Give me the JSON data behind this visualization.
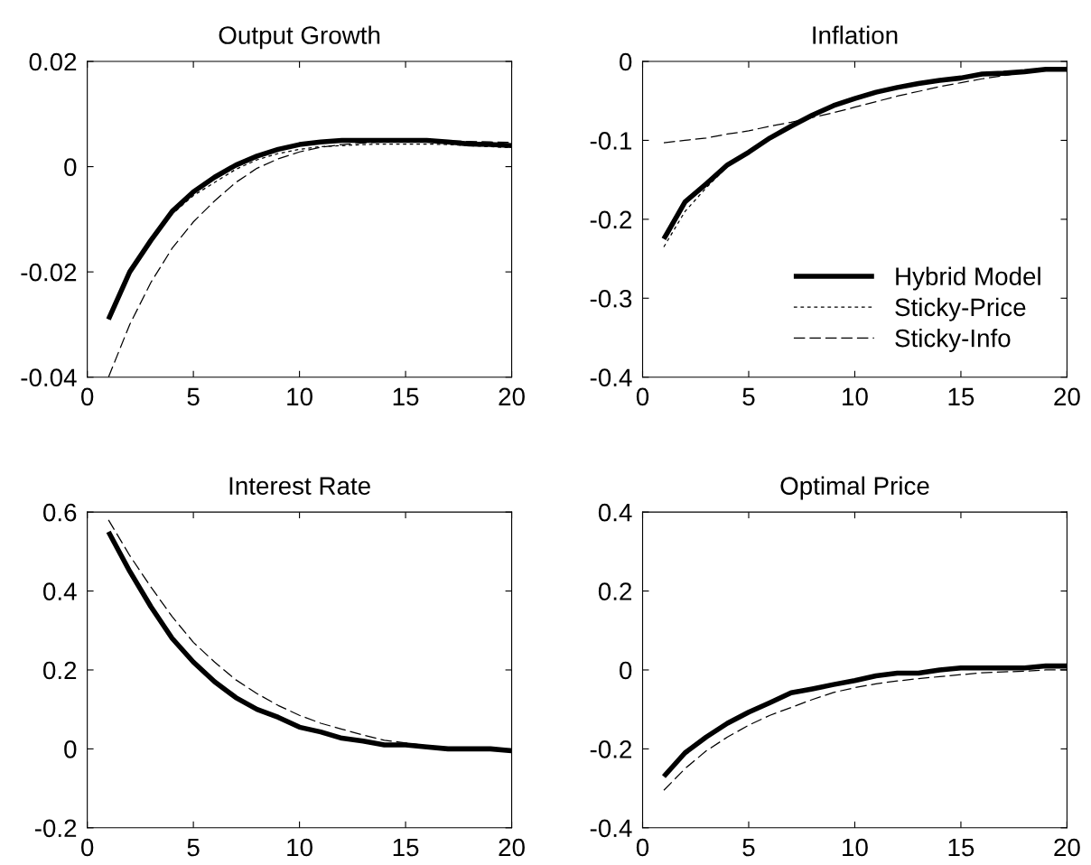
{
  "chart_data": [
    {
      "type": "line",
      "title": "Output Growth",
      "x": [
        1,
        2,
        3,
        4,
        5,
        6,
        7,
        8,
        9,
        10,
        11,
        12,
        13,
        14,
        15,
        16,
        17,
        18,
        19,
        20
      ],
      "xlim": [
        0,
        20
      ],
      "xticks": [
        0,
        5,
        10,
        15,
        20
      ],
      "ylim": [
        -0.04,
        0.02
      ],
      "yticks": [
        -0.04,
        -0.02,
        0,
        0.02
      ],
      "grid": false,
      "legend": false,
      "series": [
        {
          "color": "#000000",
          "line_style": "solid",
          "values": [
            -0.029,
            -0.02,
            -0.014,
            -0.0085,
            -0.0048,
            -0.002,
            0.0003,
            0.002,
            0.0033,
            0.0042,
            0.0047,
            0.005,
            0.005,
            0.005,
            0.005,
            0.005,
            0.0047,
            0.0043,
            0.0042,
            0.004
          ]
        },
        {
          "color": "#000000",
          "line_style": "dotted",
          "values": [
            -0.029,
            -0.02,
            -0.014,
            -0.009,
            -0.0055,
            -0.003,
            -0.0005,
            0.0013,
            0.0025,
            0.0033,
            0.0038,
            0.004,
            0.0042,
            0.0043,
            0.0043,
            0.0043,
            0.0042,
            0.004,
            0.0038,
            0.0036
          ]
        },
        {
          "color": "#000000",
          "line_style": "dashed",
          "values": [
            -0.04,
            -0.03,
            -0.022,
            -0.0155,
            -0.0105,
            -0.0065,
            -0.003,
            -0.0003,
            0.0015,
            0.0028,
            0.0037,
            0.0042,
            0.0045,
            0.0047,
            0.0048,
            0.0049,
            0.0049,
            0.0048,
            0.0047,
            0.0046
          ]
        }
      ]
    },
    {
      "type": "line",
      "title": "Inflation",
      "x": [
        1,
        2,
        3,
        4,
        5,
        6,
        7,
        8,
        9,
        10,
        11,
        12,
        13,
        14,
        15,
        16,
        17,
        18,
        19,
        20
      ],
      "xlim": [
        0,
        20
      ],
      "xticks": [
        0,
        5,
        10,
        15,
        20
      ],
      "ylim": [
        -0.4,
        0
      ],
      "yticks": [
        -0.4,
        -0.3,
        -0.2,
        -0.1,
        0
      ],
      "grid": false,
      "legend": "bottom right",
      "series": [
        {
          "name": "Hybrid Model",
          "color": "#000000",
          "line_style": "solid",
          "values": [
            -0.225,
            -0.178,
            -0.155,
            -0.131,
            -0.115,
            -0.097,
            -0.082,
            -0.068,
            -0.056,
            -0.047,
            -0.039,
            -0.033,
            -0.028,
            -0.024,
            -0.021,
            -0.016,
            -0.015,
            -0.013,
            -0.01,
            -0.01
          ]
        },
        {
          "name": "Sticky-Price",
          "color": "#000000",
          "line_style": "dotted",
          "values": [
            -0.235,
            -0.19,
            -0.16,
            -0.133,
            -0.116,
            -0.098,
            -0.083,
            -0.069,
            -0.057,
            -0.048,
            -0.04,
            -0.034,
            -0.029,
            -0.025,
            -0.021,
            -0.017,
            -0.015,
            -0.013,
            -0.011,
            -0.01
          ]
        },
        {
          "name": "Sticky-Info",
          "color": "#000000",
          "line_style": "dashed",
          "values": [
            -0.103,
            -0.1,
            -0.097,
            -0.092,
            -0.088,
            -0.082,
            -0.077,
            -0.071,
            -0.065,
            -0.058,
            -0.051,
            -0.044,
            -0.038,
            -0.032,
            -0.027,
            -0.022,
            -0.018,
            -0.014,
            -0.011,
            -0.009
          ]
        }
      ]
    },
    {
      "type": "line",
      "title": "Interest Rate",
      "x": [
        1,
        2,
        3,
        4,
        5,
        6,
        7,
        8,
        9,
        10,
        11,
        12,
        13,
        14,
        15,
        16,
        17,
        18,
        19,
        20
      ],
      "xlim": [
        0,
        20
      ],
      "xticks": [
        0,
        5,
        10,
        15,
        20
      ],
      "ylim": [
        -0.2,
        0.6
      ],
      "yticks": [
        -0.2,
        0,
        0.2,
        0.4,
        0.6
      ],
      "grid": false,
      "legend": false,
      "series": [
        {
          "color": "#000000",
          "line_style": "solid",
          "values": [
            0.55,
            0.45,
            0.36,
            0.28,
            0.22,
            0.17,
            0.13,
            0.1,
            0.08,
            0.055,
            0.043,
            0.027,
            0.02,
            0.01,
            0.01,
            0.005,
            0,
            0,
            0,
            -0.005
          ]
        },
        {
          "color": "#000000",
          "line_style": "dashed",
          "values": [
            0.58,
            0.49,
            0.41,
            0.335,
            0.27,
            0.22,
            0.175,
            0.14,
            0.11,
            0.085,
            0.065,
            0.05,
            0.035,
            0.022,
            0.015,
            0.008,
            0.003,
            0,
            -0.002,
            -0.004
          ]
        }
      ]
    },
    {
      "type": "line",
      "title": "Optimal Price",
      "x": [
        1,
        2,
        3,
        4,
        5,
        6,
        7,
        8,
        9,
        10,
        11,
        12,
        13,
        14,
        15,
        16,
        17,
        18,
        19,
        20
      ],
      "xlim": [
        0,
        20
      ],
      "xticks": [
        0,
        5,
        10,
        15,
        20
      ],
      "ylim": [
        -0.4,
        0.4
      ],
      "yticks": [
        -0.4,
        -0.2,
        0,
        0.2,
        0.4
      ],
      "grid": false,
      "legend": false,
      "series": [
        {
          "color": "#000000",
          "line_style": "solid",
          "values": [
            -0.27,
            -0.21,
            -0.17,
            -0.135,
            -0.107,
            -0.083,
            -0.058,
            -0.048,
            -0.037,
            -0.027,
            -0.015,
            -0.008,
            -0.008,
            0,
            0.005,
            0.005,
            0.005,
            0.005,
            0.01,
            0.01
          ]
        },
        {
          "color": "#000000",
          "line_style": "dashed",
          "values": [
            -0.305,
            -0.25,
            -0.205,
            -0.17,
            -0.14,
            -0.115,
            -0.095,
            -0.075,
            -0.057,
            -0.045,
            -0.035,
            -0.028,
            -0.022,
            -0.017,
            -0.012,
            -0.007,
            -0.005,
            -0.003,
            0,
            0
          ]
        }
      ]
    }
  ]
}
